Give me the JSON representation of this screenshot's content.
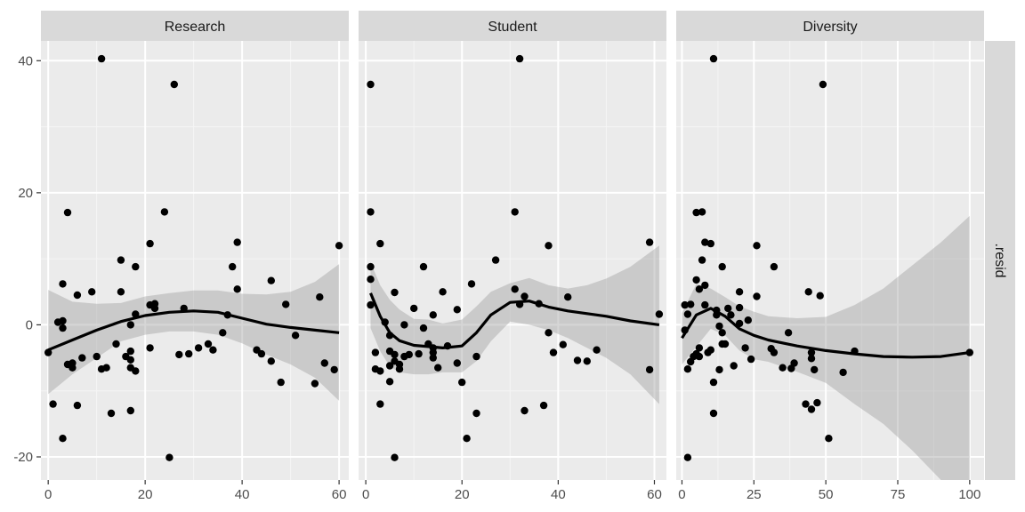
{
  "chart_data": {
    "type": "scatter",
    "layout": "facet_wrap",
    "ylabel": ".resid",
    "ylim": [
      -23.5,
      43
    ],
    "yticks": [
      -20,
      0,
      20,
      40
    ],
    "grid": true,
    "facets": [
      {
        "name": "Research",
        "xlim": [
          -1.5,
          62
        ],
        "xticks": [
          0,
          20,
          40,
          60
        ],
        "points": [
          [
            0,
            -4.2
          ],
          [
            1,
            -12
          ],
          [
            2,
            0.4
          ],
          [
            3,
            -17.2
          ],
          [
            3,
            0.6
          ],
          [
            3,
            6.2
          ],
          [
            3,
            -0.5
          ],
          [
            4,
            17
          ],
          [
            4,
            -6
          ],
          [
            5,
            -6.5
          ],
          [
            5,
            -5.8
          ],
          [
            6,
            4.5
          ],
          [
            6,
            -12.2
          ],
          [
            7,
            -5
          ],
          [
            9,
            5
          ],
          [
            10,
            -4.8
          ],
          [
            11,
            40.3
          ],
          [
            11,
            -6.7
          ],
          [
            12,
            -6.5
          ],
          [
            13,
            -13.4
          ],
          [
            14,
            -2.9
          ],
          [
            15,
            5
          ],
          [
            15,
            9.8
          ],
          [
            16,
            -4.8
          ],
          [
            17,
            0
          ],
          [
            17,
            -5.3
          ],
          [
            17,
            -13
          ],
          [
            17,
            -4
          ],
          [
            17,
            -6.5
          ],
          [
            18,
            -7
          ],
          [
            18,
            1.6
          ],
          [
            18,
            8.8
          ],
          [
            21,
            -3.5
          ],
          [
            21,
            12.3
          ],
          [
            21,
            3
          ],
          [
            22,
            3.2
          ],
          [
            22,
            2.5
          ],
          [
            24,
            17.1
          ],
          [
            25,
            -20.1
          ],
          [
            26,
            36.4
          ],
          [
            27,
            -4.5
          ],
          [
            28,
            2.5
          ],
          [
            29,
            -4.4
          ],
          [
            31,
            -3.5
          ],
          [
            33,
            -2.9
          ],
          [
            34,
            -3.8
          ],
          [
            36,
            -1.2
          ],
          [
            37,
            1.5
          ],
          [
            38,
            8.8
          ],
          [
            39,
            12.5
          ],
          [
            39,
            5.4
          ],
          [
            43,
            -3.8
          ],
          [
            44,
            -4.4
          ],
          [
            46,
            -5.5
          ],
          [
            46,
            6.7
          ],
          [
            48,
            -8.7
          ],
          [
            49,
            3.1
          ],
          [
            51,
            -1.6
          ],
          [
            55,
            -8.9
          ],
          [
            56,
            4.2
          ],
          [
            57,
            -5.8
          ],
          [
            59,
            -6.8
          ],
          [
            60,
            12
          ]
        ],
        "smooth_x": [
          0,
          5,
          10,
          15,
          20,
          25,
          30,
          35,
          40,
          45,
          50,
          55,
          60
        ],
        "smooth_y": [
          -3.8,
          -2.3,
          -0.8,
          0.5,
          1.4,
          1.9,
          2.1,
          1.9,
          1.0,
          0.1,
          -0.4,
          -0.8,
          -1.2
        ],
        "band_lo": [
          -10.5,
          -7.5,
          -5,
          -2.5,
          -1.5,
          -1,
          -1,
          -1.5,
          -2.8,
          -4.5,
          -6,
          -8,
          -11.5
        ],
        "band_hi": [
          5.3,
          3.5,
          3.2,
          3.3,
          4.3,
          4.8,
          5.2,
          5.2,
          4.7,
          4.6,
          5,
          6.5,
          9.2
        ]
      },
      {
        "name": "Student",
        "xlim": [
          -1.5,
          62.5
        ],
        "xticks": [
          0,
          20,
          40,
          60
        ],
        "points": [
          [
            1,
            36.4
          ],
          [
            1,
            17.1
          ],
          [
            1,
            8.8
          ],
          [
            1,
            6.9
          ],
          [
            1,
            3
          ],
          [
            2,
            -4.2
          ],
          [
            2,
            -6.7
          ],
          [
            3,
            12.3
          ],
          [
            3,
            -12
          ],
          [
            3,
            -7
          ],
          [
            4,
            0.4
          ],
          [
            5,
            -4
          ],
          [
            5,
            -1.6
          ],
          [
            5,
            -6.2
          ],
          [
            5,
            -8.6
          ],
          [
            6,
            -20.1
          ],
          [
            6,
            -4.5
          ],
          [
            6,
            4.9
          ],
          [
            6,
            -5.5
          ],
          [
            7,
            -6.7
          ],
          [
            7,
            -6
          ],
          [
            8,
            0
          ],
          [
            8,
            -4.8
          ],
          [
            9,
            -4.5
          ],
          [
            10,
            2.5
          ],
          [
            11,
            -4.4
          ],
          [
            12,
            8.8
          ],
          [
            12,
            -0.5
          ],
          [
            13,
            -2.9
          ],
          [
            14,
            -3.5
          ],
          [
            14,
            -5
          ],
          [
            14,
            -4.2
          ],
          [
            14,
            1.5
          ],
          [
            15,
            -6.5
          ],
          [
            16,
            5
          ],
          [
            17,
            -3.2
          ],
          [
            19,
            -5.8
          ],
          [
            19,
            2.3
          ],
          [
            20,
            -8.7
          ],
          [
            21,
            -17.2
          ],
          [
            22,
            6.2
          ],
          [
            23,
            -13.4
          ],
          [
            23,
            -4.8
          ],
          [
            27,
            9.8
          ],
          [
            31,
            17.1
          ],
          [
            31,
            5.4
          ],
          [
            32,
            40.3
          ],
          [
            32,
            3.1
          ],
          [
            33,
            -13
          ],
          [
            33,
            4.3
          ],
          [
            36,
            3.2
          ],
          [
            37,
            -12.2
          ],
          [
            38,
            -1.2
          ],
          [
            38,
            12
          ],
          [
            39,
            -4.2
          ],
          [
            41,
            -3
          ],
          [
            42,
            4.2
          ],
          [
            44,
            -5.4
          ],
          [
            46,
            -5.5
          ],
          [
            48,
            -3.8
          ],
          [
            59,
            12.5
          ],
          [
            59,
            -6.8
          ],
          [
            61,
            1.6
          ]
        ],
        "smooth_x": [
          1,
          3,
          5,
          7,
          10,
          13,
          16,
          20,
          23,
          26,
          30,
          34,
          38,
          42,
          46,
          50,
          55,
          61
        ],
        "smooth_y": [
          4.8,
          1.3,
          -1.2,
          -2.4,
          -3.1,
          -3.3,
          -3.5,
          -3.2,
          -1.2,
          1.5,
          3.4,
          3.6,
          2.7,
          2.1,
          1.7,
          1.3,
          0.6,
          0
        ],
        "band_lo": [
          -0.5,
          -4,
          -6.3,
          -7.2,
          -7.5,
          -7.5,
          -7.2,
          -7.2,
          -5.5,
          -2.5,
          0.5,
          0,
          -0.8,
          -2,
          -3.5,
          -5,
          -7.5,
          -12
        ],
        "band_hi": [
          9.5,
          6,
          3.8,
          2.3,
          0.9,
          0.8,
          0.2,
          0.8,
          2.8,
          5,
          6.3,
          7.1,
          6,
          5.5,
          6,
          7,
          8.8,
          12
        ]
      },
      {
        "name": "Diversity",
        "xlim": [
          -2,
          105
        ],
        "xticks": [
          0,
          25,
          50,
          75,
          100
        ],
        "points": [
          [
            1,
            3
          ],
          [
            1,
            -0.8
          ],
          [
            2,
            -6.7
          ],
          [
            2,
            -20.1
          ],
          [
            2,
            1.6
          ],
          [
            3,
            -5.6
          ],
          [
            3,
            3.1
          ],
          [
            4,
            -4.8
          ],
          [
            5,
            -4.4
          ],
          [
            5,
            17
          ],
          [
            5,
            6.8
          ],
          [
            6,
            -4.8
          ],
          [
            6,
            5.4
          ],
          [
            6,
            -3.5
          ],
          [
            7,
            17.1
          ],
          [
            7,
            9.8
          ],
          [
            8,
            12.5
          ],
          [
            8,
            6
          ],
          [
            8,
            3
          ],
          [
            9,
            -4.2
          ],
          [
            10,
            12.3
          ],
          [
            10,
            -3.8
          ],
          [
            11,
            40.3
          ],
          [
            11,
            -8.7
          ],
          [
            11,
            -13.4
          ],
          [
            12,
            1.5
          ],
          [
            12,
            2.2
          ],
          [
            13,
            -6.8
          ],
          [
            13,
            -0.2
          ],
          [
            14,
            8.8
          ],
          [
            14,
            -1.2
          ],
          [
            14,
            -2.9
          ],
          [
            15,
            -2.9
          ],
          [
            16,
            2.5
          ],
          [
            17,
            1.5
          ],
          [
            18,
            -6.2
          ],
          [
            20,
            0.2
          ],
          [
            20,
            2.6
          ],
          [
            20,
            5
          ],
          [
            22,
            -3.5
          ],
          [
            23,
            0.7
          ],
          [
            24,
            -5.2
          ],
          [
            26,
            12
          ],
          [
            26,
            4.3
          ],
          [
            31,
            -3.6
          ],
          [
            32,
            8.8
          ],
          [
            32,
            -4.2
          ],
          [
            35,
            -6.5
          ],
          [
            37,
            -1.2
          ],
          [
            38,
            -6.6
          ],
          [
            39,
            -5.8
          ],
          [
            43,
            -12
          ],
          [
            44,
            5
          ],
          [
            45,
            -12.8
          ],
          [
            45,
            -5.1
          ],
          [
            45,
            -4.2
          ],
          [
            46,
            -6.8
          ],
          [
            47,
            -11.8
          ],
          [
            48,
            4.4
          ],
          [
            49,
            36.4
          ],
          [
            51,
            -17.2
          ],
          [
            56,
            -7.2
          ],
          [
            60,
            -4
          ],
          [
            100,
            -4.2
          ]
        ],
        "smooth_x": [
          0,
          5,
          10,
          15,
          20,
          25,
          30,
          40,
          50,
          60,
          70,
          80,
          90,
          100
        ],
        "smooth_y": [
          -2,
          1.5,
          2.5,
          1.3,
          -0.6,
          -1.6,
          -2.3,
          -3.2,
          -3.9,
          -4.4,
          -4.8,
          -4.9,
          -4.8,
          -4.2
        ],
        "band_lo": [
          -6,
          -3.3,
          -0.6,
          -1.6,
          -3.9,
          -5.2,
          -5.6,
          -7.1,
          -8.8,
          -12,
          -15,
          -19,
          -23.5,
          -26
        ],
        "band_hi": [
          1.8,
          6.2,
          5.5,
          4.2,
          2.8,
          2,
          1.3,
          1,
          1.2,
          3,
          5.5,
          9,
          12.5,
          16.5
        ]
      }
    ]
  }
}
